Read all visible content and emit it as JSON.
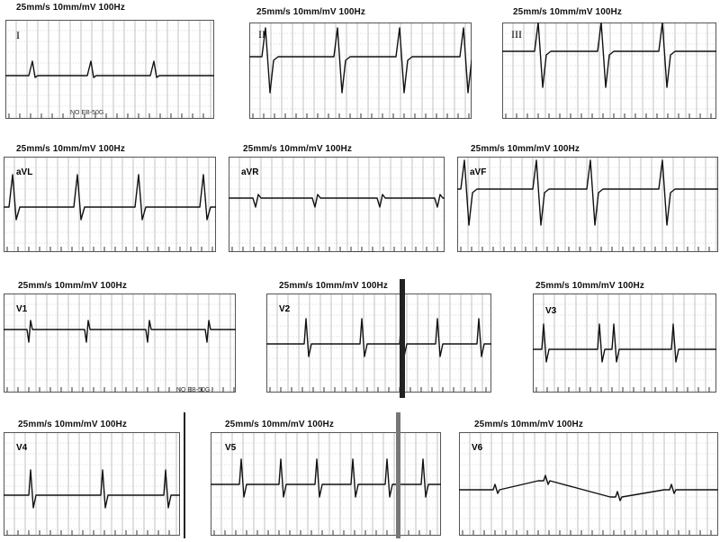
{
  "header_text": "25mm/s  10mm/mV  100Hz",
  "stamp_text": "NO EB-50G",
  "leads": [
    {
      "label": "I"
    },
    {
      "label": "II"
    },
    {
      "label": "III"
    },
    {
      "label": "aVL"
    },
    {
      "label": "aVR"
    },
    {
      "label": "aVF"
    },
    {
      "label": "V1"
    },
    {
      "label": "V2"
    },
    {
      "label": "V3"
    },
    {
      "label": "V4"
    },
    {
      "label": "V5"
    },
    {
      "label": "V6"
    }
  ]
}
